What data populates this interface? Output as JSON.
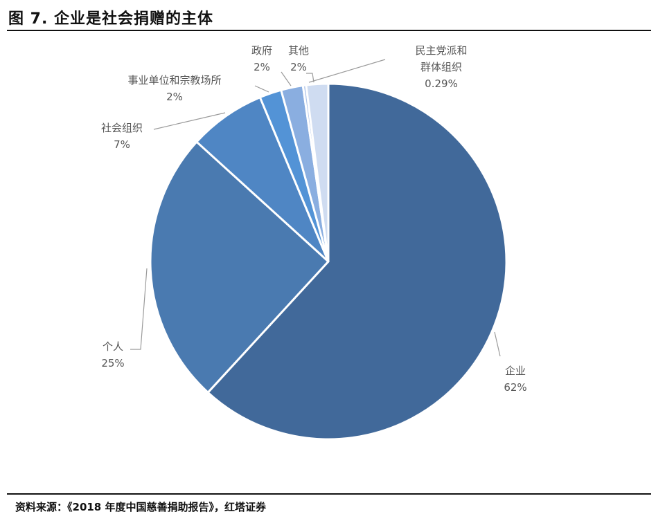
{
  "title": "图 7. 企业是社会捐赠的主体",
  "source": "资料来源：《2018 年度中国慈善捐助报告》，红塔证券",
  "chart_data": {
    "type": "pie",
    "start_angle_deg": 0,
    "direction": "clockwise",
    "slices": [
      {
        "name": "企业",
        "label_lines": [
          "企业"
        ],
        "value_label": "62%",
        "value": 62,
        "color": "#41699a"
      },
      {
        "name": "个人",
        "label_lines": [
          "个人"
        ],
        "value_label": "25%",
        "value": 25,
        "color": "#4a7ab0"
      },
      {
        "name": "社会组织",
        "label_lines": [
          "社会组织"
        ],
        "value_label": "7%",
        "value": 7,
        "color": "#4f86c4"
      },
      {
        "name": "事业单位和宗教场所",
        "label_lines": [
          "事业单位和宗教场所"
        ],
        "value_label": "2%",
        "value": 2,
        "color": "#5393d6"
      },
      {
        "name": "政府",
        "label_lines": [
          "政府"
        ],
        "value_label": "2%",
        "value": 2,
        "color": "#8aaee0"
      },
      {
        "name": "民主党派和群体组织",
        "label_lines": [
          "民主党派和",
          "群体组织"
        ],
        "value_label": "0.29%",
        "value": 0.29,
        "color": "#b4c8ea"
      },
      {
        "name": "其他",
        "label_lines": [
          "其他"
        ],
        "value_label": "2%",
        "value": 2,
        "color": "#cfdcf1"
      }
    ],
    "legend": "none"
  }
}
